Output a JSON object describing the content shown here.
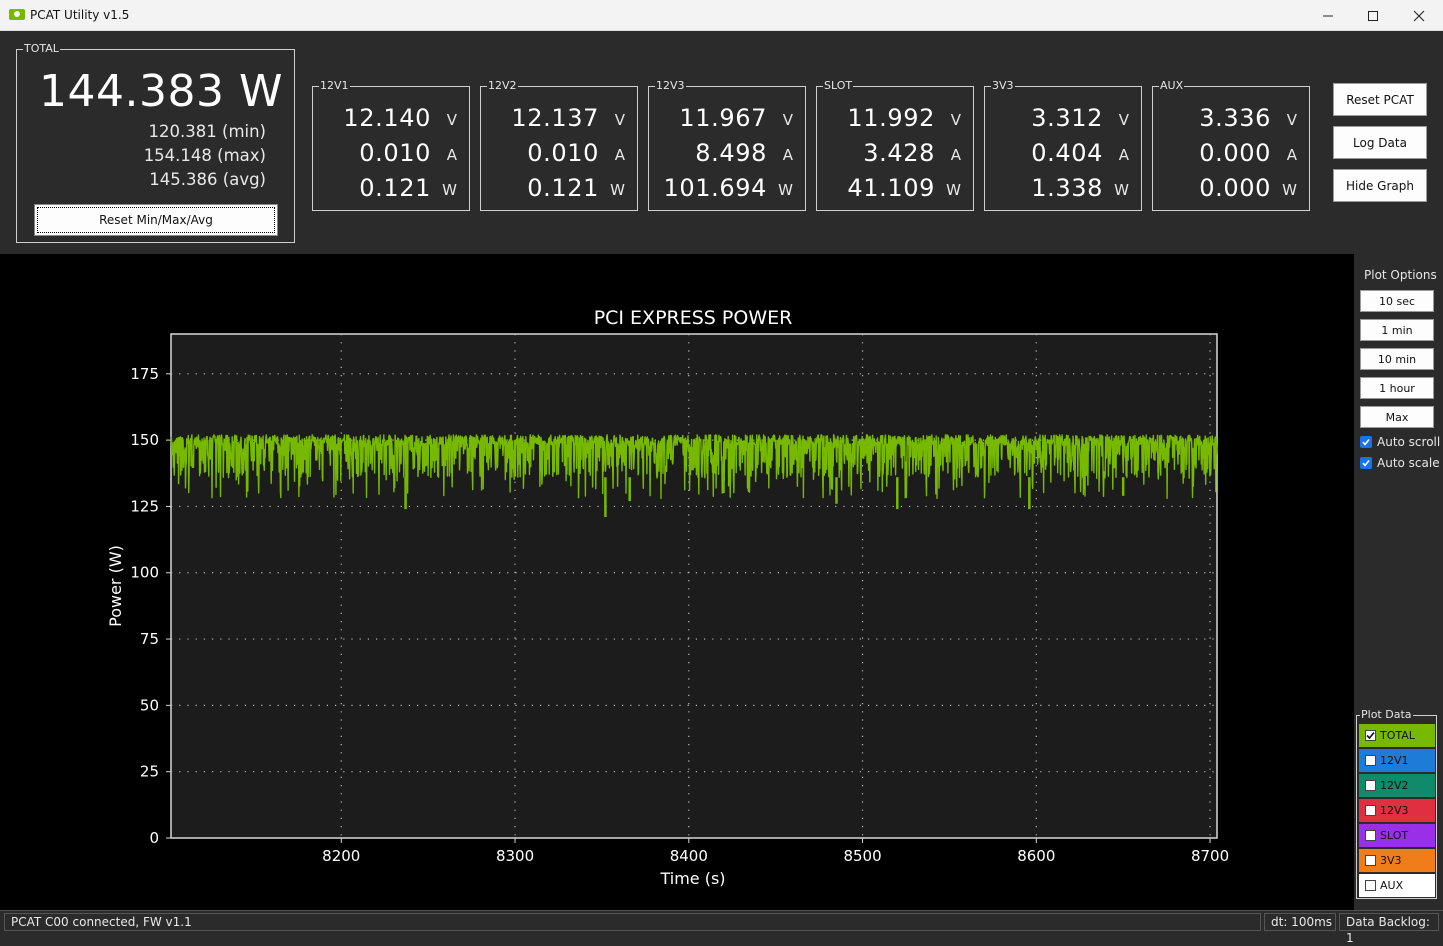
{
  "window": {
    "title": "PCAT Utility v1.5"
  },
  "total": {
    "label": "TOTAL",
    "value": "144.383 W",
    "min": "120.381 (min)",
    "max": "154.148 (max)",
    "avg": "145.386 (avg)",
    "reset_label": "Reset Min/Max/Avg"
  },
  "rails": [
    {
      "label": "12V1",
      "voltage": "12.140",
      "current": "0.010",
      "power": "0.121"
    },
    {
      "label": "12V2",
      "voltage": "12.137",
      "current": "0.010",
      "power": "0.121"
    },
    {
      "label": "12V3",
      "voltage": "11.967",
      "current": "8.498",
      "power": "101.694"
    },
    {
      "label": "SLOT",
      "voltage": "11.992",
      "current": "3.428",
      "power": "41.109"
    },
    {
      "label": "3V3",
      "voltage": "3.312",
      "current": "0.404",
      "power": "1.338"
    },
    {
      "label": "AUX",
      "voltage": "3.336",
      "current": "0.000",
      "power": "0.000"
    }
  ],
  "units": {
    "v": "V",
    "a": "A",
    "w": "W"
  },
  "buttons": {
    "reset_pcat": "Reset PCAT",
    "log_data": "Log Data",
    "hide_graph": "Hide Graph"
  },
  "plot_options": {
    "label": "Plot Options",
    "ranges": [
      "10 sec",
      "1 min",
      "10 min",
      "1 hour",
      "Max"
    ],
    "auto_scroll": "Auto scroll",
    "auto_scale": "Auto scale"
  },
  "plot_data": {
    "label": "Plot Data",
    "items": [
      {
        "name": "TOTAL",
        "color": "#76b900",
        "checked": true
      },
      {
        "name": "12V1",
        "color": "#1e7bd8",
        "checked": false
      },
      {
        "name": "12V2",
        "color": "#0f8a6a",
        "checked": false
      },
      {
        "name": "12V3",
        "color": "#e03040",
        "checked": false
      },
      {
        "name": "SLOT",
        "color": "#9a2fe8",
        "checked": false
      },
      {
        "name": "3V3",
        "color": "#f07d1a",
        "checked": false
      },
      {
        "name": "AUX",
        "color": "#e6e6e6",
        "checked": false
      }
    ]
  },
  "status": {
    "connection": "PCAT C00 connected, FW v1.1",
    "dt": "dt: 100ms",
    "backlog": "Data Backlog: 1"
  },
  "chart_data": {
    "type": "line",
    "title": "PCI EXPRESS POWER",
    "xlabel": "Time (s)",
    "ylabel": "Power (W)",
    "xlim": [
      8102,
      8704
    ],
    "ylim": [
      0,
      190
    ],
    "xticks": [
      8200,
      8300,
      8400,
      8500,
      8600,
      8700
    ],
    "yticks": [
      0,
      25,
      50,
      75,
      100,
      125,
      150,
      175
    ],
    "grid": true,
    "series": [
      {
        "name": "TOTAL",
        "color": "#76b900",
        "mean": 144.5,
        "band": [
          136,
          152
        ],
        "min": 121,
        "max": 153,
        "dips": [
          {
            "x": 8237,
            "y": 124
          },
          {
            "x": 8352,
            "y": 121
          },
          {
            "x": 8366,
            "y": 127
          },
          {
            "x": 8420,
            "y": 130
          },
          {
            "x": 8485,
            "y": 126
          },
          {
            "x": 8520,
            "y": 124
          },
          {
            "x": 8596,
            "y": 124
          },
          {
            "x": 8650,
            "y": 129
          }
        ]
      }
    ]
  }
}
